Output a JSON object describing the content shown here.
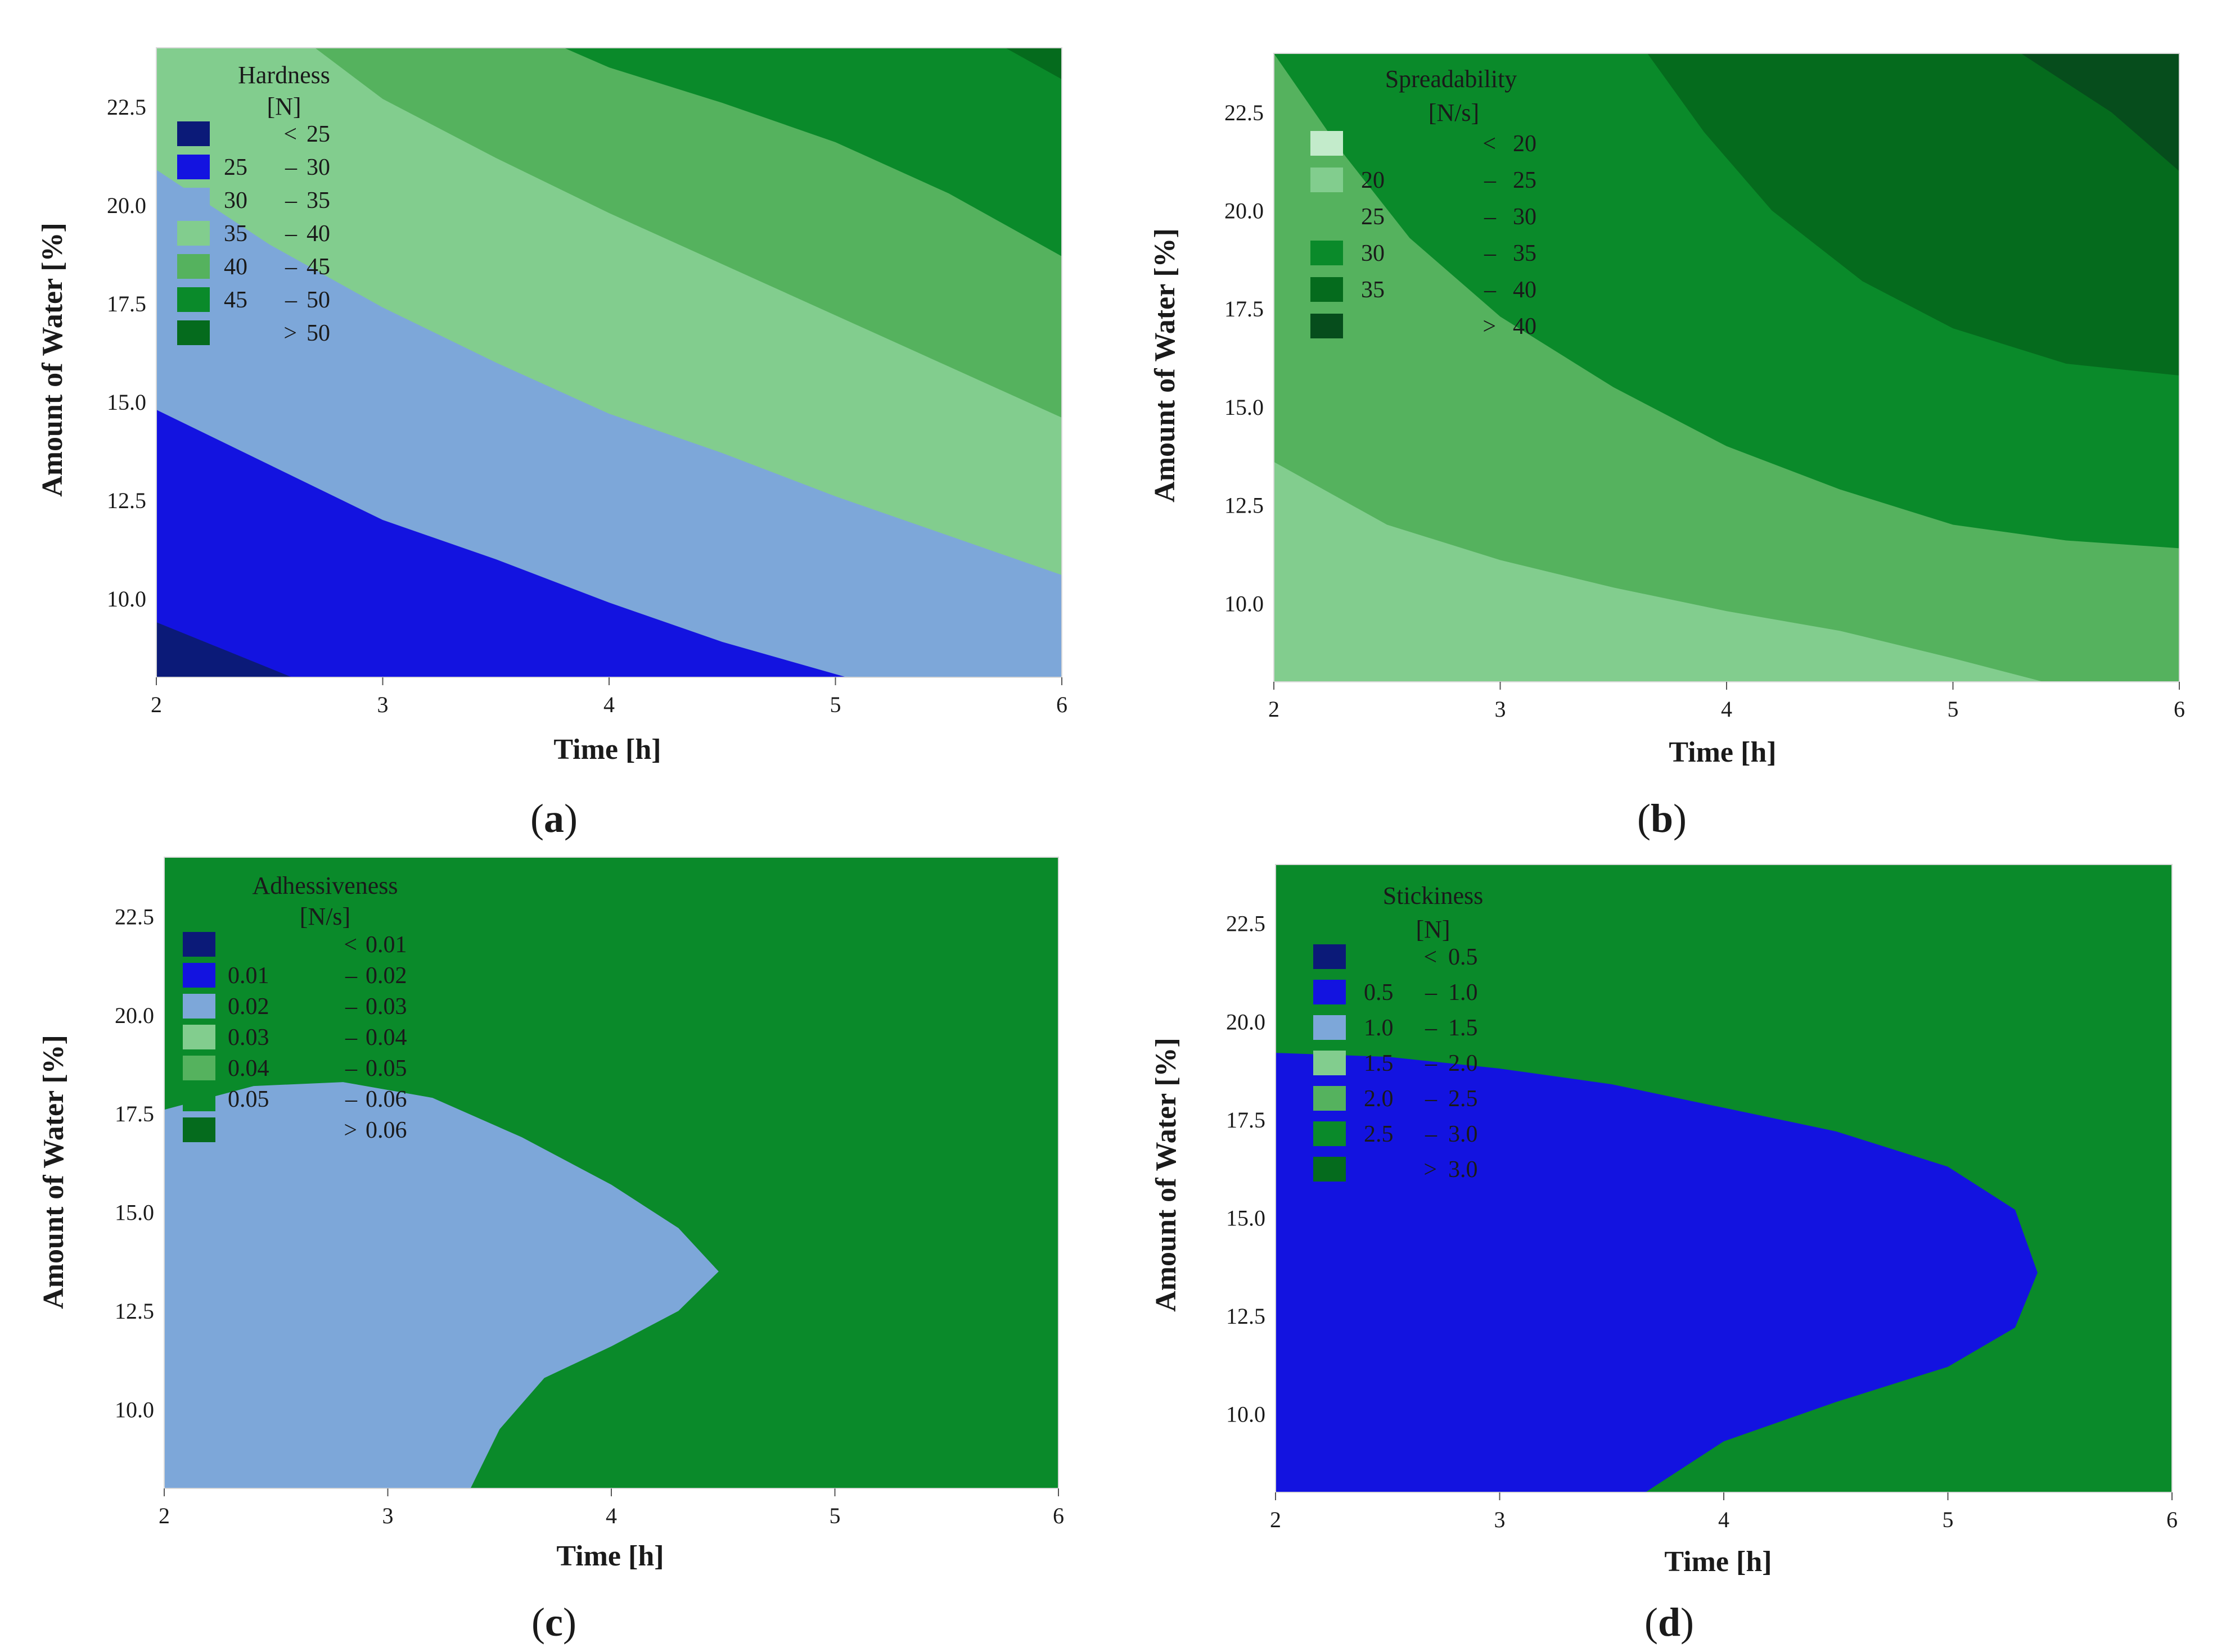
{
  "figure": {
    "panels": [
      {
        "caption_letter": "a"
      },
      {
        "caption_letter": "b"
      },
      {
        "caption_letter": "c"
      },
      {
        "caption_letter": "d"
      }
    ]
  },
  "chart_data": [
    {
      "type": "contour",
      "xlabel": "Time [h]",
      "ylabel": "Amount of Water [%]",
      "xlim": [
        2,
        6
      ],
      "ylim": [
        8,
        24
      ],
      "xticks": [
        "2",
        "3",
        "4",
        "5",
        "6"
      ],
      "yticks": [
        "10.0",
        "12.5",
        "15.0",
        "17.5",
        "20.0",
        "22.5"
      ],
      "legend_title": [
        "Hardness",
        "[N]"
      ],
      "legend_placement": "top-left",
      "legend": [
        {
          "low": "",
          "sep": "<",
          "high": "25",
          "color": "#0b1a78"
        },
        {
          "low": "25",
          "sep": "–",
          "high": "30",
          "color": "#1313e0"
        },
        {
          "low": "30",
          "sep": "–",
          "high": "35",
          "color": "#7da7d9"
        },
        {
          "low": "35",
          "sep": "–",
          "high": "40",
          "color": "#82cd8e"
        },
        {
          "low": "40",
          "sep": "–",
          "high": "45",
          "color": "#55b25e"
        },
        {
          "low": "45",
          "sep": "–",
          "high": "50",
          "color": "#0a8a2a"
        },
        {
          "low": "",
          "sep": ">",
          "high": "50",
          "color": "#056b1d"
        }
      ],
      "contours": [
        {
          "level": 25,
          "points": [
            [
              2,
              9.4
            ],
            [
              2.6,
              8
            ]
          ]
        },
        {
          "level": 30,
          "points": [
            [
              2,
              14.8
            ],
            [
              2.5,
              13.4
            ],
            [
              3,
              12.0
            ],
            [
              3.5,
              11.0
            ],
            [
              4,
              9.9
            ],
            [
              4.5,
              8.9
            ],
            [
              5.05,
              8
            ]
          ]
        },
        {
          "level": 35,
          "points": [
            [
              2,
              20.9
            ],
            [
              2.5,
              19.0
            ],
            [
              3,
              17.4
            ],
            [
              3.5,
              16.0
            ],
            [
              4,
              14.7
            ],
            [
              4.5,
              13.7
            ],
            [
              5,
              12.6
            ],
            [
              5.5,
              11.6
            ],
            [
              6,
              10.6
            ]
          ]
        },
        {
          "level": 40,
          "points": [
            [
              2.7,
              24
            ],
            [
              3,
              22.7
            ],
            [
              3.5,
              21.2
            ],
            [
              4,
              19.8
            ],
            [
              4.5,
              18.5
            ],
            [
              5,
              17.2
            ],
            [
              5.5,
              15.9
            ],
            [
              6,
              14.6
            ]
          ]
        },
        {
          "level": 45,
          "points": [
            [
              3.8,
              24
            ],
            [
              4,
              23.5
            ],
            [
              4.5,
              22.6
            ],
            [
              5,
              21.6
            ],
            [
              5.5,
              20.3
            ],
            [
              6,
              18.7
            ]
          ]
        },
        {
          "level": 50,
          "points": [
            [
              5.75,
              24
            ],
            [
              6,
              23.2
            ]
          ]
        }
      ]
    },
    {
      "type": "contour",
      "xlabel": "Time [h]",
      "ylabel": "Amount of Water [%]",
      "xlim": [
        2,
        6
      ],
      "ylim": [
        8,
        24
      ],
      "xticks": [
        "2",
        "3",
        "4",
        "5",
        "6"
      ],
      "yticks": [
        "10.0",
        "12.5",
        "15.0",
        "17.5",
        "20.0",
        "22.5"
      ],
      "legend_title": [
        "Spreadability",
        "[N/s]"
      ],
      "legend_placement": "top-left",
      "legend": [
        {
          "low": "",
          "sep": "<",
          "high": "20",
          "color": "#c3ebcb"
        },
        {
          "low": "20",
          "sep": "–",
          "high": "25",
          "color": "#82cd8e"
        },
        {
          "low": "25",
          "sep": "–",
          "high": "30",
          "color": "#55b25e"
        },
        {
          "low": "30",
          "sep": "–",
          "high": "35",
          "color": "#0a8a2a"
        },
        {
          "low": "35",
          "sep": "–",
          "high": "40",
          "color": "#056b1d"
        },
        {
          "low": "",
          "sep": ">",
          "high": "40",
          "color": "#064d1c"
        }
      ],
      "contours": [
        {
          "level": 25,
          "points": [
            [
              2,
              13.6
            ],
            [
              2.5,
              12.0
            ],
            [
              3,
              11.1
            ],
            [
              3.5,
              10.4
            ],
            [
              4,
              9.8
            ],
            [
              4.5,
              9.3
            ],
            [
              5,
              8.6
            ],
            [
              5.4,
              8
            ]
          ]
        },
        {
          "level": 30,
          "points": [
            [
              2,
              24
            ],
            [
              2.3,
              21.5
            ],
            [
              2.6,
              19.3
            ],
            [
              3,
              17.3
            ],
            [
              3.5,
              15.5
            ],
            [
              4,
              14.0
            ],
            [
              4.5,
              12.9
            ],
            [
              5,
              12.0
            ],
            [
              5.5,
              11.6
            ],
            [
              6,
              11.4
            ]
          ]
        },
        {
          "level": 35,
          "points": [
            [
              3.65,
              24
            ],
            [
              3.9,
              22.0
            ],
            [
              4.2,
              20.0
            ],
            [
              4.6,
              18.2
            ],
            [
              5,
              17.0
            ],
            [
              5.5,
              16.1
            ],
            [
              6,
              15.8
            ]
          ]
        },
        {
          "level": 40,
          "points": [
            [
              5.3,
              24
            ],
            [
              5.7,
              22.5
            ],
            [
              6,
              21.0
            ]
          ]
        }
      ]
    },
    {
      "type": "contour",
      "xlabel": "Time [h]",
      "ylabel": "Amount of Water [%]",
      "xlim": [
        2,
        6
      ],
      "ylim": [
        8,
        24
      ],
      "xticks": [
        "2",
        "3",
        "4",
        "5",
        "6"
      ],
      "yticks": [
        "10.0",
        "12.5",
        "15.0",
        "17.5",
        "20.0",
        "22.5"
      ],
      "legend_title": [
        "Adhessiveness",
        "[N/s]"
      ],
      "legend_placement": "top-left",
      "legend": [
        {
          "low": "",
          "sep": "<",
          "high": "0.01",
          "color": "#0b1a78"
        },
        {
          "low": "0.01",
          "sep": "–",
          "high": "0.02",
          "color": "#1313e0"
        },
        {
          "low": "0.02",
          "sep": "–",
          "high": "0.03",
          "color": "#7da7d9"
        },
        {
          "low": "0.03",
          "sep": "–",
          "high": "0.04",
          "color": "#82cd8e"
        },
        {
          "low": "0.04",
          "sep": "–",
          "high": "0.05",
          "color": "#55b25e"
        },
        {
          "low": "0.05",
          "sep": "–",
          "high": "0.06",
          "color": "#0a8a2a"
        },
        {
          "low": "",
          "sep": ">",
          "high": "0.06",
          "color": "#056b1d"
        }
      ],
      "contours": [
        {
          "level": 0.03,
          "points": [
            [
              3.3,
              24
            ],
            [
              4,
              23.4
            ],
            [
              4.5,
              22.9
            ],
            [
              5,
              22.2
            ],
            [
              5.5,
              21.3
            ],
            [
              6,
              20.3
            ]
          ]
        },
        {
          "level": 0.04,
          "points": [
            [
              2,
              22.3
            ],
            [
              2.5,
              21.8
            ],
            [
              3,
              21.4
            ],
            [
              3.5,
              21.0
            ],
            [
              4,
              20.5
            ],
            [
              4.5,
              20.0
            ],
            [
              5,
              19.5
            ],
            [
              5.3,
              18.8
            ],
            [
              5.5,
              17.3
            ],
            [
              5.7,
              15.5
            ],
            [
              6,
              13.1
            ]
          ]
        },
        {
          "level": 0.05,
          "points": [
            [
              2,
              17.6
            ],
            [
              2.4,
              18.2
            ],
            [
              2.8,
              18.3
            ],
            [
              3.2,
              17.9
            ],
            [
              3.6,
              16.9
            ],
            [
              4,
              15.7
            ],
            [
              4.3,
              14.6
            ],
            [
              4.48,
              13.5
            ],
            [
              4.3,
              12.5
            ],
            [
              4,
              11.6
            ],
            [
              3.7,
              10.8
            ],
            [
              3.5,
              9.5
            ],
            [
              3.37,
              8
            ]
          ]
        }
      ]
    },
    {
      "type": "contour",
      "xlabel": "Time [h]",
      "ylabel": "Amount of Water [%]",
      "xlim": [
        2,
        6
      ],
      "ylim": [
        8,
        24
      ],
      "xticks": [
        "2",
        "3",
        "4",
        "5",
        "6"
      ],
      "yticks": [
        "10.0",
        "12.5",
        "15.0",
        "17.5",
        "20.0",
        "22.5"
      ],
      "legend_title": [
        "Stickiness",
        "[N]"
      ],
      "legend_placement": "top-left",
      "legend": [
        {
          "low": "",
          "sep": "<",
          "high": "0.5",
          "color": "#0b1a78"
        },
        {
          "low": "0.5",
          "sep": "–",
          "high": "1.0",
          "color": "#1313e0"
        },
        {
          "low": "1.0",
          "sep": "–",
          "high": "1.5",
          "color": "#7da7d9"
        },
        {
          "low": "1.5",
          "sep": "–",
          "high": "2.0",
          "color": "#82cd8e"
        },
        {
          "low": "2.0",
          "sep": "–",
          "high": "2.5",
          "color": "#55b25e"
        },
        {
          "low": "2.5",
          "sep": "–",
          "high": "3.0",
          "color": "#0a8a2a"
        },
        {
          "low": "",
          "sep": ">",
          "high": "3.0",
          "color": "#056b1d"
        }
      ],
      "contours": [
        {
          "level": 1.0,
          "points": [
            [
              5.3,
              24
            ],
            [
              5.7,
              23.6
            ],
            [
              6,
              23.4
            ]
          ]
        },
        {
          "level": 1.5,
          "points": [
            [
              3.3,
              24
            ],
            [
              4,
              23.5
            ],
            [
              4.5,
              23.1
            ],
            [
              5,
              22.6
            ],
            [
              5.5,
              21.5
            ],
            [
              6,
              20.1
            ]
          ]
        },
        {
          "level": 2.0,
          "points": [
            [
              2,
              22.8
            ],
            [
              2.5,
              22.0
            ],
            [
              3,
              21.4
            ],
            [
              3.5,
              21.0
            ],
            [
              4,
              20.6
            ],
            [
              4.5,
              20.1
            ],
            [
              5,
              19.5
            ],
            [
              5.5,
              18.4
            ],
            [
              5.8,
              17.3
            ],
            [
              6,
              16.0
            ]
          ]
        },
        {
          "level": 2.5,
          "points": [
            [
              2,
              19.2
            ],
            [
              2.5,
              19.1
            ],
            [
              3,
              18.8
            ],
            [
              3.5,
              18.4
            ],
            [
              4,
              17.8
            ],
            [
              4.5,
              17.2
            ],
            [
              5,
              16.3
            ],
            [
              5.3,
              15.2
            ],
            [
              5.4,
              13.6
            ],
            [
              5.3,
              12.2
            ],
            [
              5,
              11.2
            ],
            [
              4.5,
              10.3
            ],
            [
              4,
              9.3
            ],
            [
              3.65,
              8
            ]
          ]
        }
      ]
    }
  ]
}
